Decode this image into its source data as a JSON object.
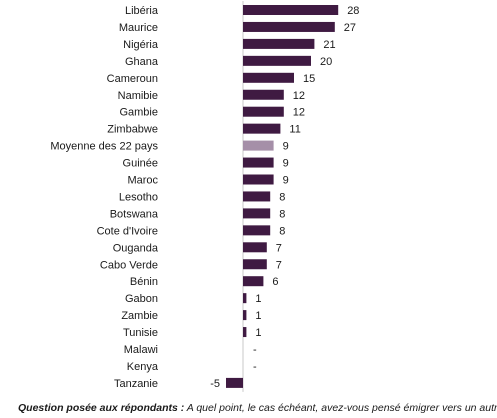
{
  "chart_data": {
    "type": "bar",
    "orientation": "horizontal",
    "categories": [
      "Libéria",
      "Maurice",
      "Nigéria",
      "Ghana",
      "Cameroun",
      "Namibie",
      "Gambie",
      "Zimbabwe",
      "Moyenne des 22 pays",
      "Guinée",
      "Maroc",
      "Lesotho",
      "Botswana",
      "Cote d'Ivoire",
      "Ouganda",
      "Cabo Verde",
      "Bénin",
      "Gabon",
      "Zambie",
      "Tunisie",
      "Malawi",
      "Kenya",
      "Tanzanie"
    ],
    "values": [
      28,
      27,
      21,
      20,
      15,
      12,
      12,
      11,
      9,
      9,
      9,
      8,
      8,
      8,
      7,
      7,
      6,
      1,
      1,
      1,
      null,
      null,
      -5
    ],
    "value_labels": [
      "28",
      "27",
      "21",
      "20",
      "15",
      "12",
      "12",
      "11",
      "9",
      "9",
      "9",
      "8",
      "8",
      "8",
      "7",
      "7",
      "6",
      "1",
      "1",
      "1",
      "-",
      "-",
      "-5"
    ],
    "highlight_category": "Moyenne des 22 pays",
    "colors": {
      "bar": "#3f1a42",
      "highlight": "#a58fa8",
      "axis": "#c8c8c8"
    },
    "grid": false,
    "legend": "none"
  },
  "footnote": {
    "question_label": "Question posée aux répondants :",
    "text": " A quel point, le cas échéant, avez-vous pensé émigrer vers un autre"
  }
}
